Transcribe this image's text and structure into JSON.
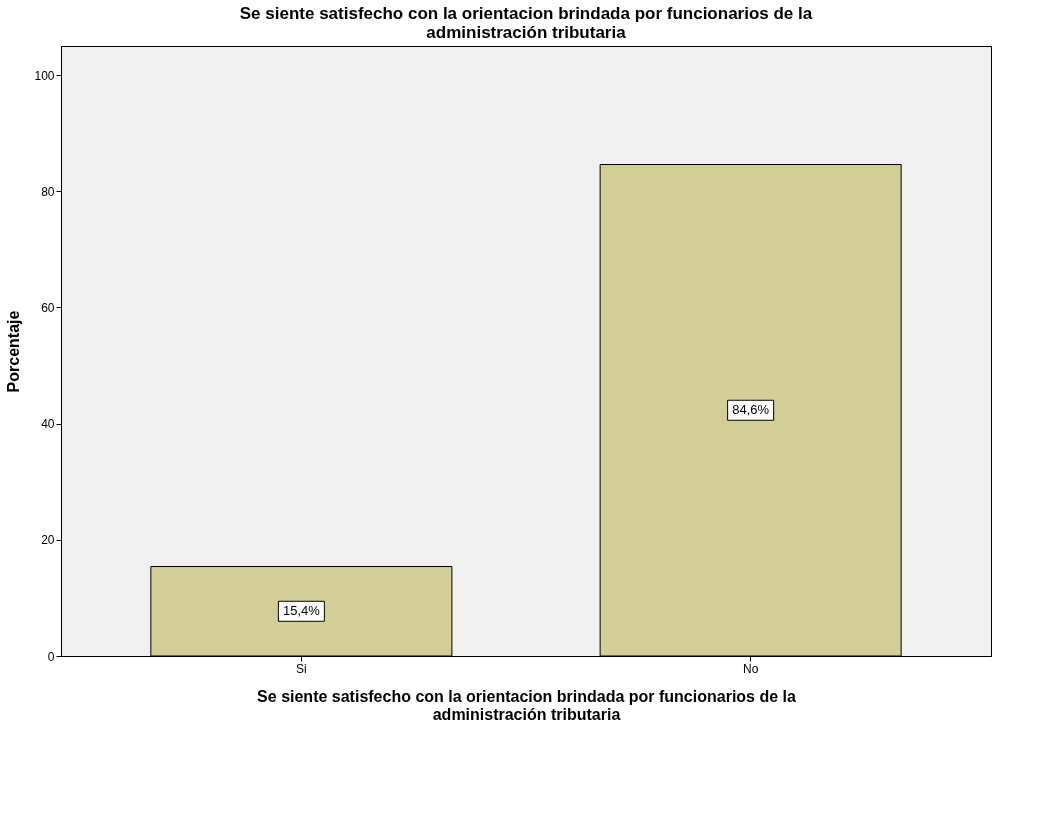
{
  "chart_data": {
    "type": "bar",
    "title": "Se siente satisfecho con la orientacion brindada por funcionarios  de la\nadministración tributaria",
    "xlabel": "Se siente satisfecho con la orientacion brindada por funcionarios  de la\nadministración tributaria",
    "ylabel": "Porcentaje",
    "categories": [
      "Si",
      "No"
    ],
    "values": [
      15.4,
      84.6
    ],
    "value_labels": [
      "15,4%",
      "84,6%"
    ],
    "color": "#d3ce97",
    "ylim": [
      0,
      105
    ],
    "yticks": [
      0,
      20,
      40,
      60,
      80,
      100
    ]
  }
}
